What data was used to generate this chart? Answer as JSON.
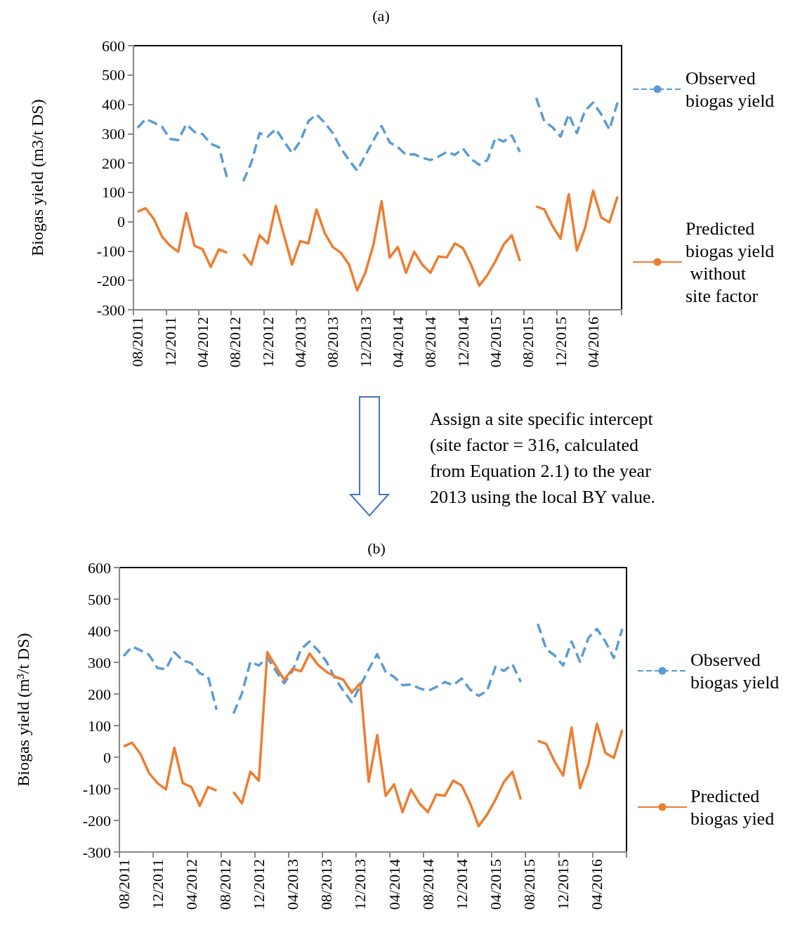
{
  "chart_data": [
    {
      "type": "line",
      "title": "(a)",
      "ylabel": "Biogas yield (m3/t DS)",
      "categories": [
        "08/2011",
        null,
        null,
        null,
        "12/2011",
        null,
        null,
        null,
        "04/2012",
        null,
        null,
        null,
        "08/2012",
        null,
        null,
        null,
        "12/2012",
        null,
        null,
        null,
        "04/2013",
        null,
        null,
        null,
        "08/2013",
        null,
        null,
        null,
        "12/2013",
        null,
        null,
        null,
        "04/2014",
        null,
        null,
        null,
        "08/2014",
        null,
        null,
        null,
        "12/2014",
        null,
        null,
        null,
        "04/2015",
        null,
        null,
        null,
        "08/2015",
        null,
        null,
        null,
        "12/2015",
        null,
        null,
        null,
        "04/2016",
        null,
        null,
        null
      ],
      "series": [
        {
          "name": "Observed biogas yield",
          "color": "#5b9bd5",
          "line_style": "dashed",
          "values": [
            320,
            350,
            338,
            324,
            282,
            278,
            332,
            306,
            298,
            266,
            254,
            150,
            null,
            138,
            202,
            302,
            290,
            316,
            274,
            234,
            274,
            342,
            366,
            338,
            302,
            250,
            210,
            174,
            226,
            278,
            326,
            270,
            254,
            228,
            230,
            218,
            210,
            222,
            238,
            228,
            249,
            214,
            194,
            210,
            286,
            273,
            294,
            238,
            null,
            422,
            342,
            322,
            290,
            366,
            302,
            378,
            406,
            366,
            314,
            406
          ]
        },
        {
          "name": "Predicted biogas yield without site factor",
          "color": "#ed7d31",
          "line_style": "solid",
          "values": [
            34,
            46,
            10,
            -50,
            -82,
            -102,
            30,
            -82,
            -94,
            -154,
            -94,
            -106,
            null,
            -110,
            -146,
            -46,
            -74,
            54,
            -46,
            -146,
            -66,
            -74,
            42,
            -38,
            -86,
            -106,
            -146,
            -234,
            -174,
            -78,
            70,
            -122,
            -86,
            -174,
            -102,
            -146,
            -174,
            -118,
            -122,
            -74,
            -90,
            -146,
            -218,
            -182,
            -134,
            -78,
            -46,
            -134,
            null,
            52,
            42,
            -14,
            -58,
            94,
            -98,
            -22,
            106,
            14,
            -2,
            86
          ]
        }
      ],
      "ylim": [
        -300,
        600
      ],
      "yticks": [
        -300,
        -200,
        -100,
        0,
        100,
        200,
        300,
        400,
        500,
        600
      ],
      "marker": "none",
      "legend": "right",
      "annotations": [
        "Assign a site specific intercept (site factor = 316, calculated from Equation 2.1) to the year 2013 using the local BY value."
      ]
    },
    {
      "type": "line",
      "title": "(b)",
      "ylabel": "Biogas yield (m³/t DS)",
      "categories": [
        "08/2011",
        null,
        null,
        null,
        "12/2011",
        null,
        null,
        null,
        "04/2012",
        null,
        null,
        null,
        "08/2012",
        null,
        null,
        null,
        "12/2012",
        null,
        null,
        null,
        "04/2013",
        null,
        null,
        null,
        "08/2013",
        null,
        null,
        null,
        "12/2013",
        null,
        null,
        null,
        "04/2014",
        null,
        null,
        null,
        "08/2014",
        null,
        null,
        null,
        "12/2014",
        null,
        null,
        null,
        "04/2015",
        null,
        null,
        null,
        "08/2015",
        null,
        null,
        null,
        "12/2015",
        null,
        null,
        null,
        "04/2016",
        null,
        null,
        null
      ],
      "series": [
        {
          "name": "Observed biogas yield",
          "color": "#5b9bd5",
          "line_style": "dashed",
          "values": [
            320,
            350,
            338,
            324,
            282,
            278,
            332,
            306,
            298,
            266,
            254,
            150,
            null,
            138,
            202,
            302,
            290,
            316,
            274,
            234,
            274,
            342,
            366,
            338,
            302,
            250,
            210,
            174,
            226,
            278,
            326,
            270,
            254,
            228,
            230,
            218,
            210,
            222,
            238,
            228,
            249,
            214,
            194,
            210,
            286,
            273,
            294,
            238,
            null,
            422,
            342,
            322,
            290,
            366,
            302,
            378,
            406,
            366,
            314,
            406
          ]
        },
        {
          "name": "Predicted biogas yied",
          "color": "#ed7d31",
          "line_style": "solid",
          "values": [
            34,
            46,
            10,
            -50,
            -82,
            -102,
            30,
            -82,
            -94,
            -154,
            -94,
            -106,
            null,
            -110,
            -146,
            -46,
            -74,
            332,
            288,
            245,
            280,
            272,
            328,
            292,
            270,
            255,
            245,
            204,
            234,
            -78,
            70,
            -122,
            -86,
            -174,
            -102,
            -146,
            -174,
            -118,
            -122,
            -74,
            -90,
            -146,
            -218,
            -182,
            -134,
            -78,
            -46,
            -134,
            null,
            52,
            42,
            -14,
            -58,
            94,
            -98,
            -22,
            106,
            14,
            -2,
            86
          ]
        }
      ],
      "ylim": [
        -300,
        600
      ],
      "yticks": [
        -300,
        -200,
        -100,
        0,
        100,
        200,
        300,
        400,
        500,
        600
      ],
      "marker": "none",
      "legend": "right"
    }
  ]
}
